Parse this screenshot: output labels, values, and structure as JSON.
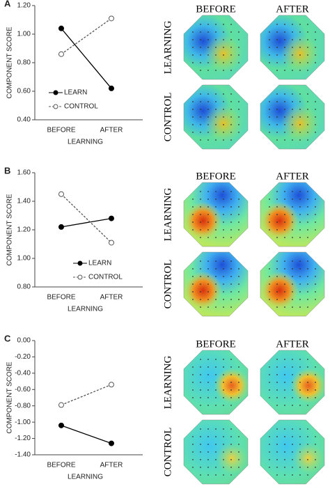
{
  "chart_data": [
    {
      "type": "line",
      "panel": "A",
      "ylabel": "COMPONENT SCORE",
      "xlabel": "LEARNING",
      "categories": [
        "BEFORE",
        "AFTER"
      ],
      "series": [
        {
          "name": "LEARN",
          "color": "#000000",
          "marker": "filled",
          "dashed": false,
          "values": [
            1.04,
            0.62
          ]
        },
        {
          "name": "CONTROL",
          "color": "#555555",
          "marker": "open",
          "dashed": true,
          "values": [
            0.86,
            1.11
          ]
        }
      ],
      "ylim": [
        0.4,
        1.2
      ],
      "yticks": [
        {
          "value": 0.4,
          "label": "0.40"
        },
        {
          "value": 0.6,
          "label": "0.60"
        },
        {
          "value": 0.8,
          "label": "0.80"
        },
        {
          "value": 1.0,
          "label": "1.00"
        },
        {
          "value": 1.2,
          "label": "1.20"
        }
      ],
      "legend": "lower left",
      "topomap_columns": [
        "BEFORE",
        "AFTER"
      ],
      "topomap_rows": [
        "LEARNING",
        "CONTROL"
      ]
    },
    {
      "type": "line",
      "panel": "B",
      "ylabel": "COMPONENT SCORE",
      "xlabel": "LEARNING",
      "categories": [
        "BEFORE",
        "AFTER"
      ],
      "series": [
        {
          "name": "LEARN",
          "color": "#000000",
          "marker": "filled",
          "dashed": false,
          "values": [
            1.22,
            1.28
          ]
        },
        {
          "name": "CONTROL",
          "color": "#555555",
          "marker": "open",
          "dashed": true,
          "values": [
            1.45,
            1.11
          ]
        }
      ],
      "ylim": [
        0.8,
        1.6
      ],
      "yticks": [
        {
          "value": 0.8,
          "label": "0.80"
        },
        {
          "value": 1.0,
          "label": "1.00"
        },
        {
          "value": 1.2,
          "label": "1.20"
        },
        {
          "value": 1.4,
          "label": "1.40"
        },
        {
          "value": 1.6,
          "label": "1.60"
        }
      ],
      "legend": "lower center",
      "topomap_columns": [
        "BEFORE",
        "AFTER"
      ],
      "topomap_rows": [
        "LEARNING",
        "CONTROL"
      ]
    },
    {
      "type": "line",
      "panel": "C",
      "ylabel": "COMPONENT SCORE",
      "xlabel": "LEARNING",
      "categories": [
        "BEFORE",
        "AFTER"
      ],
      "series": [
        {
          "name": "LEARN",
          "color": "#000000",
          "marker": "filled",
          "dashed": false,
          "values": [
            -1.04,
            -1.26
          ]
        },
        {
          "name": "CONTROL",
          "color": "#555555",
          "marker": "open",
          "dashed": true,
          "values": [
            -0.79,
            -0.54
          ]
        }
      ],
      "ylim": [
        -1.4,
        0
      ],
      "yticks": [
        {
          "value": -1.4,
          "label": "-1.40"
        },
        {
          "value": -1.2,
          "label": "-1.20"
        },
        {
          "value": -1.0,
          "label": "-1.00"
        },
        {
          "value": -0.8,
          "label": "-0.80"
        },
        {
          "value": -0.6,
          "label": "-0.60"
        },
        {
          "value": -0.4,
          "label": "-0.40"
        },
        {
          "value": -0.2,
          "label": "-0.20"
        },
        {
          "value": 0,
          "label": "0.00"
        }
      ],
      "topomap_columns": [
        "BEFORE",
        "AFTER"
      ],
      "topomap_rows": [
        "LEARNING",
        "CONTROL"
      ]
    }
  ]
}
